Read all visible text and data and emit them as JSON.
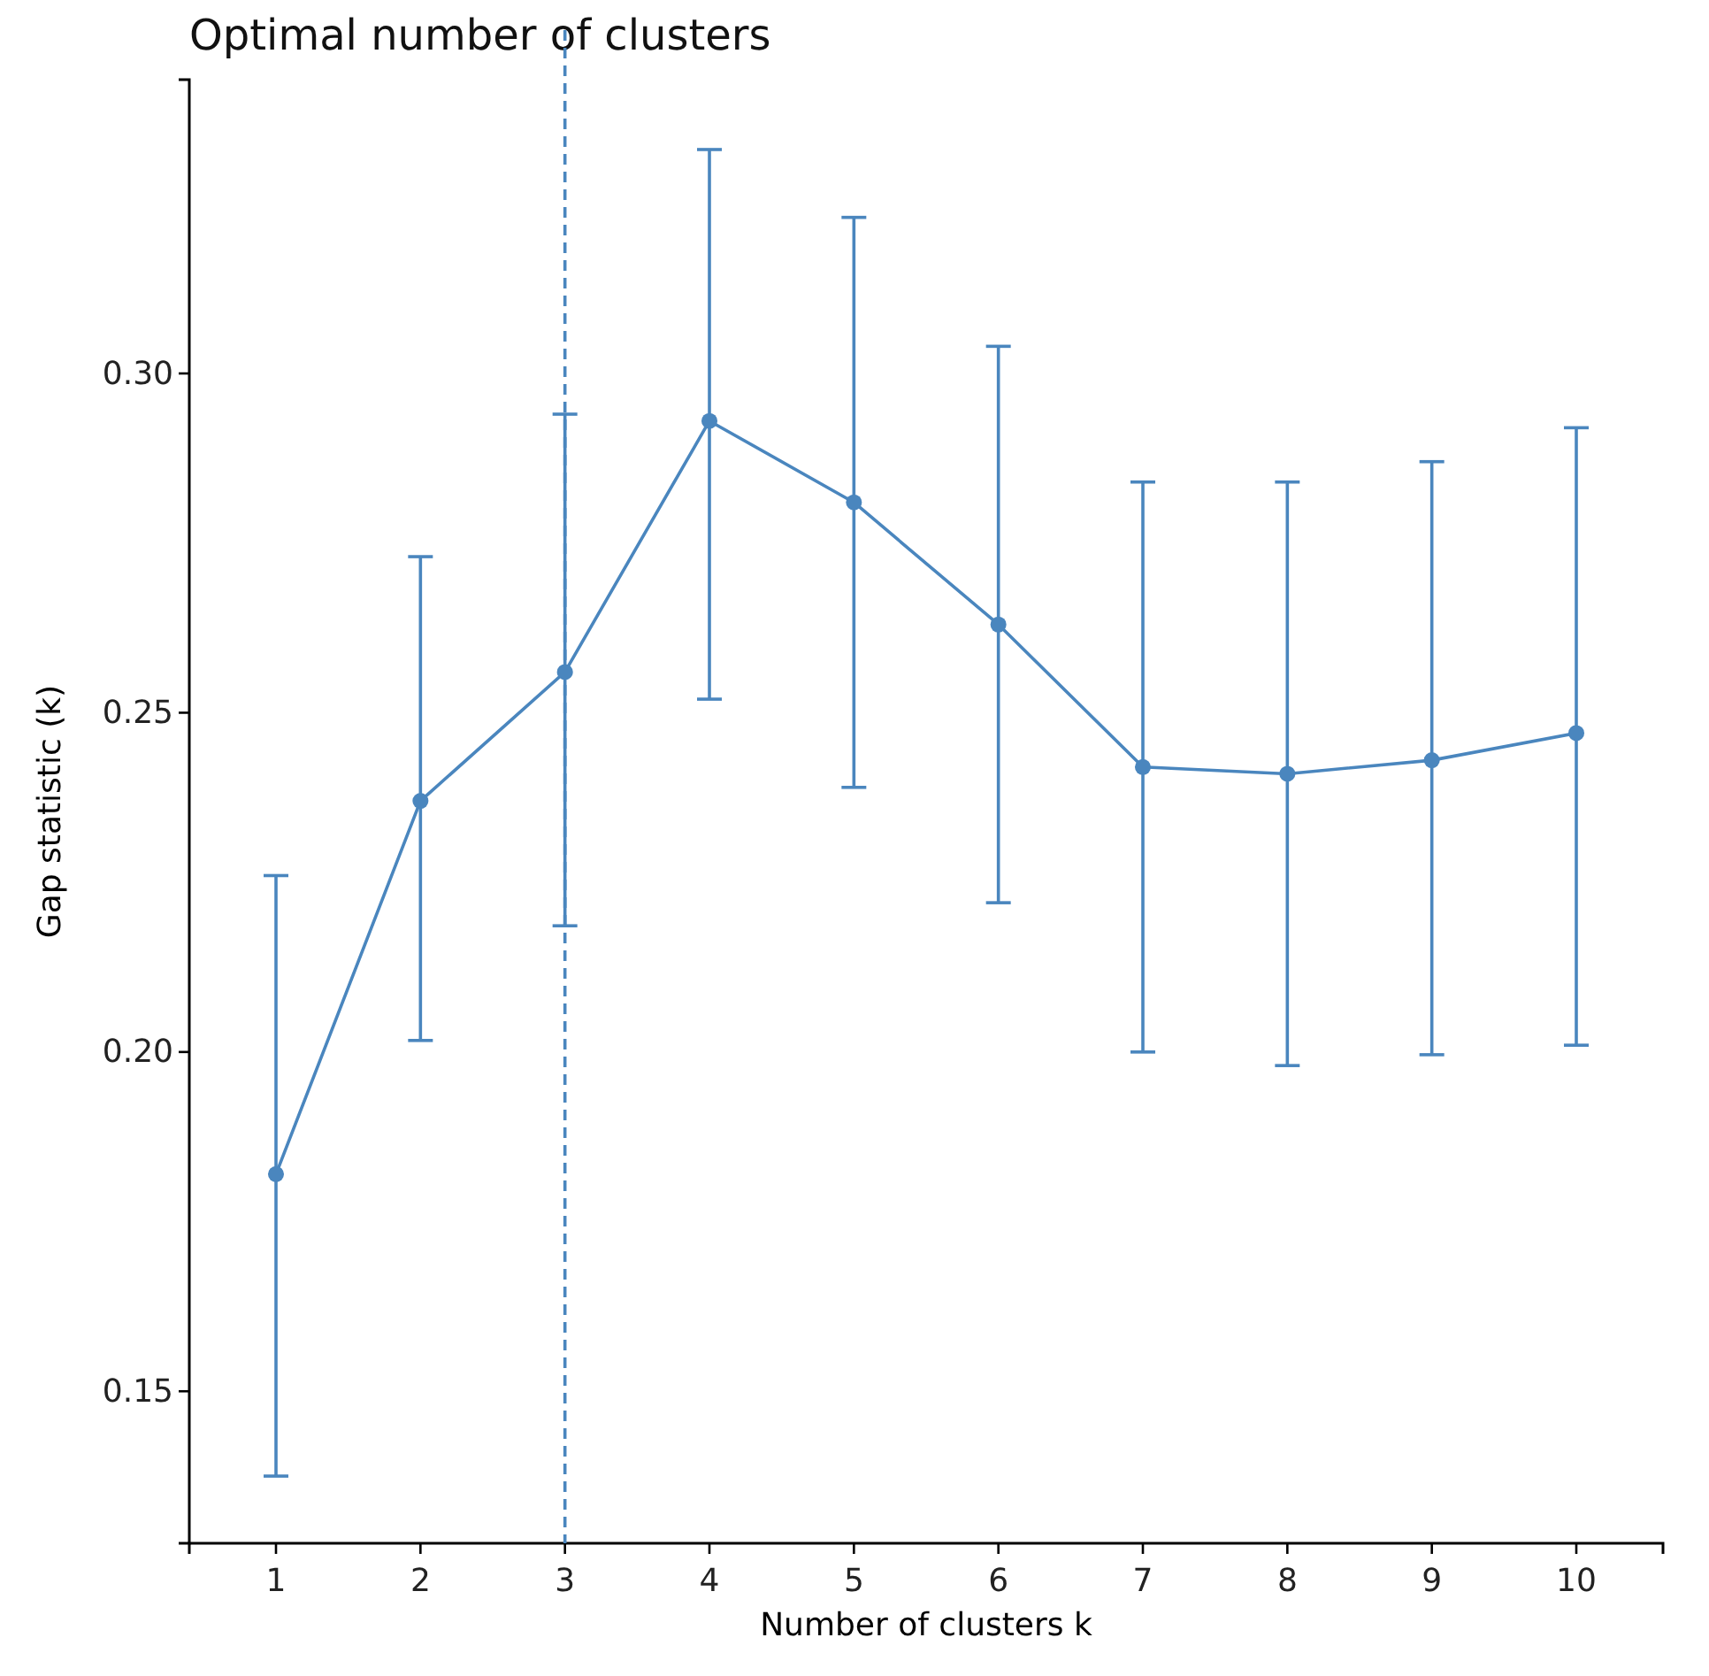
{
  "chart_data": {
    "type": "line",
    "title": "Optimal number of clusters",
    "xlabel": "Number of clusters k",
    "ylabel": "Gap statistic (k)",
    "x": [
      1,
      2,
      3,
      4,
      5,
      6,
      7,
      8,
      9,
      10
    ],
    "series": [
      {
        "color": "#4a86be",
        "values": [
          0.182,
          0.237,
          0.256,
          0.293,
          0.281,
          0.263,
          0.242,
          0.241,
          0.243,
          0.247
        ],
        "errors": [
          [
            0.1375,
            0.226
          ],
          [
            0.2017,
            0.273
          ],
          [
            0.2186,
            0.294
          ],
          [
            0.252,
            0.333
          ],
          [
            0.239,
            0.323
          ],
          [
            0.222,
            0.304
          ],
          [
            0.2,
            0.284
          ],
          [
            0.198,
            0.284
          ],
          [
            0.1996,
            0.287
          ],
          [
            0.201,
            0.292
          ]
        ]
      }
    ],
    "xlim": [
      0.4,
      10.6
    ],
    "xticks": [
      1,
      2,
      3,
      4,
      5,
      6,
      7,
      8,
      9,
      10
    ],
    "ylim": [
      0.1276,
      0.3433
    ],
    "yticks": [
      {
        "value": 0.15,
        "label": "0.15"
      },
      {
        "value": 0.2,
        "label": "0.20"
      },
      {
        "value": 0.25,
        "label": "0.25"
      },
      {
        "value": 0.3,
        "label": "0.30"
      }
    ],
    "ref_lines": [
      {
        "axis": "x",
        "value": 3,
        "color": "#4a86be",
        "line_style": "dashed"
      }
    ],
    "marker": "circle",
    "line_style": "solid",
    "grid": false
  }
}
